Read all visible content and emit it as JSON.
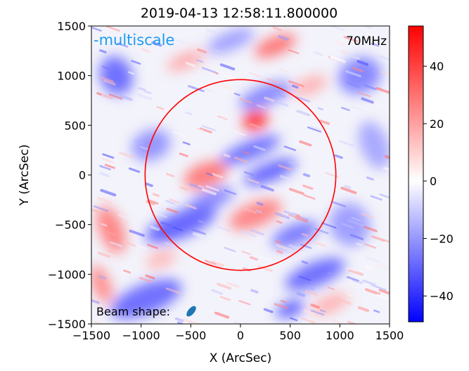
{
  "chart_data": {
    "type": "heatmap",
    "title": "2019-04-13 12:58:11.800000",
    "xlabel": "X (ArcSec)",
    "ylabel": "Y (ArcSec)",
    "xlim": [
      -1500,
      1500
    ],
    "ylim": [
      -1500,
      1500
    ],
    "x_ticks": [
      -1500,
      -1000,
      -500,
      0,
      500,
      1000,
      1500
    ],
    "x_tick_labels": [
      "−1500",
      "−1000",
      "−500",
      "0",
      "500",
      "1000",
      "1500"
    ],
    "y_ticks": [
      1500,
      1000,
      500,
      0,
      -500,
      -1000,
      -1500
    ],
    "y_tick_labels": [
      "1500",
      "1000",
      "500",
      "0",
      "−500",
      "−1000",
      "−1500"
    ],
    "colorbar": {
      "range": [
        -49,
        54
      ],
      "ticks": [
        40,
        20,
        0,
        -20,
        -40
      ],
      "tick_labels": [
        "40",
        "20",
        "0",
        "−20",
        "−40"
      ],
      "colormap": "bwr",
      "color_low": "#0000ff",
      "color_mid": "#ffffff",
      "color_high": "#ff0000"
    },
    "annotations": {
      "top_left": "-multiscale",
      "top_left_color": "#1f9bf0",
      "top_right": "70MHz",
      "bottom_left": "Beam shape:"
    },
    "beam_color": "#1f77b4",
    "solar_limb": {
      "center": [
        0,
        0
      ],
      "radius": 960,
      "color": "#ff0000"
    },
    "grid": false,
    "blobs": [
      {
        "x": 150,
        "y": 550,
        "rx": 130,
        "ry": 100,
        "value": 45
      },
      {
        "x": -350,
        "y": 0,
        "rx": 230,
        "ry": 120,
        "value": 30
      },
      {
        "x": 150,
        "y": -400,
        "rx": 280,
        "ry": 120,
        "value": 28
      },
      {
        "x": 350,
        "y": 1300,
        "rx": 220,
        "ry": 90,
        "value": 32
      },
      {
        "x": -1300,
        "y": -550,
        "rx": 120,
        "ry": 250,
        "value": 28
      },
      {
        "x": -1400,
        "y": -1100,
        "rx": 90,
        "ry": 200,
        "value": 26
      },
      {
        "x": -550,
        "y": 1150,
        "rx": 200,
        "ry": 70,
        "value": 20
      },
      {
        "x": 700,
        "y": 900,
        "rx": 180,
        "ry": 80,
        "value": 18
      },
      {
        "x": 900,
        "y": -1300,
        "rx": 200,
        "ry": 80,
        "value": 18
      },
      {
        "x": -800,
        "y": -850,
        "rx": 160,
        "ry": 80,
        "value": 16
      },
      {
        "x": -1250,
        "y": 1000,
        "rx": 160,
        "ry": 200,
        "value": -30
      },
      {
        "x": 1200,
        "y": 1000,
        "rx": 220,
        "ry": 180,
        "value": -25
      },
      {
        "x": 250,
        "y": 800,
        "rx": 280,
        "ry": 100,
        "value": -25
      },
      {
        "x": 100,
        "y": 250,
        "rx": 320,
        "ry": 90,
        "value": -30
      },
      {
        "x": 300,
        "y": 30,
        "rx": 280,
        "ry": 90,
        "value": -32
      },
      {
        "x": -600,
        "y": -500,
        "rx": 380,
        "ry": 130,
        "value": -32
      },
      {
        "x": -300,
        "y": -250,
        "rx": 250,
        "ry": 90,
        "value": -25
      },
      {
        "x": 550,
        "y": -600,
        "rx": 250,
        "ry": 100,
        "value": -28
      },
      {
        "x": -950,
        "y": -1250,
        "rx": 380,
        "ry": 150,
        "value": -30
      },
      {
        "x": 750,
        "y": -1000,
        "rx": 320,
        "ry": 120,
        "value": -30
      },
      {
        "x": 1100,
        "y": -500,
        "rx": 200,
        "ry": 220,
        "value": -20
      },
      {
        "x": -900,
        "y": 300,
        "rx": 200,
        "ry": 150,
        "value": -22
      },
      {
        "x": -100,
        "y": 1350,
        "rx": 250,
        "ry": 90,
        "value": -20
      },
      {
        "x": 500,
        "y": -1350,
        "rx": 150,
        "ry": 70,
        "value": -35
      },
      {
        "x": 1350,
        "y": 300,
        "rx": 140,
        "ry": 250,
        "value": -18
      }
    ]
  }
}
